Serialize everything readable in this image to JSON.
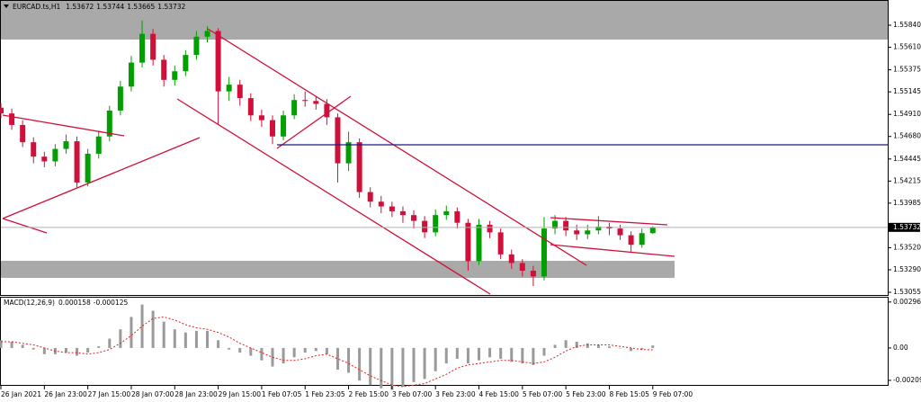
{
  "chart_data": [
    {
      "type": "candlestick",
      "symbol": "EURCAD.ts,H1",
      "x": [
        0,
        4,
        8,
        12,
        16,
        20,
        24,
        28,
        32,
        36,
        40,
        44,
        48,
        52,
        56,
        60,
        64,
        68,
        72,
        76,
        80,
        84,
        88,
        92,
        96,
        100,
        104,
        108,
        112,
        116,
        120,
        124,
        128,
        132,
        136,
        140,
        144,
        148,
        152,
        156,
        160,
        164,
        168,
        172,
        176,
        180,
        184,
        188,
        192,
        196,
        200,
        204,
        208,
        212,
        216,
        220,
        224,
        228,
        232,
        236,
        240
      ],
      "open": [
        1.5498,
        1.5492,
        1.548,
        1.5462,
        1.5447,
        1.5442,
        1.5455,
        1.5463,
        1.542,
        1.545,
        1.5468,
        1.5495,
        1.552,
        1.5545,
        1.5575,
        1.5548,
        1.5527,
        1.5536,
        1.5553,
        1.5572,
        1.5578,
        1.5515,
        1.5522,
        1.5508,
        1.549,
        1.5485,
        1.5468,
        1.549,
        1.5506,
        1.5505,
        1.5502,
        1.5488,
        1.544,
        1.5462,
        1.541,
        1.54,
        1.5395,
        1.539,
        1.5386,
        1.538,
        1.5368,
        1.5386,
        1.539,
        1.5378,
        1.5338,
        1.5376,
        1.5368,
        1.5345,
        1.5336,
        1.5328,
        1.5322,
        1.5372,
        1.538,
        1.537,
        1.5366,
        1.537,
        1.5374,
        1.5372,
        1.5365,
        1.5355,
        1.53672
      ],
      "high": [
        1.5503,
        1.5497,
        1.5485,
        1.5467,
        1.5452,
        1.546,
        1.547,
        1.5468,
        1.5455,
        1.5474,
        1.55,
        1.5526,
        1.5552,
        1.5589,
        1.558,
        1.5553,
        1.5542,
        1.5558,
        1.5578,
        1.5583,
        1.5581,
        1.553,
        1.5527,
        1.5513,
        1.5496,
        1.549,
        1.5495,
        1.5512,
        1.5515,
        1.551,
        1.5507,
        1.5492,
        1.5473,
        1.5466,
        1.5415,
        1.5406,
        1.54,
        1.5395,
        1.5391,
        1.5385,
        1.5392,
        1.5396,
        1.5394,
        1.5382,
        1.5382,
        1.538,
        1.5372,
        1.535,
        1.534,
        1.5333,
        1.5384,
        1.5386,
        1.5384,
        1.5376,
        1.5376,
        1.5385,
        1.5378,
        1.5376,
        1.5369,
        1.5372,
        1.53744
      ],
      "low": [
        1.5487,
        1.5475,
        1.5457,
        1.544,
        1.5436,
        1.5437,
        1.545,
        1.5415,
        1.5416,
        1.5445,
        1.5463,
        1.549,
        1.5515,
        1.554,
        1.5542,
        1.552,
        1.5521,
        1.5531,
        1.5548,
        1.5566,
        1.548,
        1.5505,
        1.55,
        1.5484,
        1.5478,
        1.546,
        1.5464,
        1.5486,
        1.5499,
        1.5496,
        1.548,
        1.542,
        1.5432,
        1.5404,
        1.5394,
        1.5388,
        1.5384,
        1.5378,
        1.5372,
        1.5362,
        1.5364,
        1.5381,
        1.5372,
        1.5328,
        1.5334,
        1.5362,
        1.534,
        1.533,
        1.5322,
        1.5312,
        1.5318,
        1.5366,
        1.5364,
        1.536,
        1.5361,
        1.5366,
        1.5365,
        1.536,
        1.5348,
        1.5352,
        1.53665
      ],
      "close": [
        1.5492,
        1.548,
        1.5462,
        1.5447,
        1.5442,
        1.5455,
        1.5463,
        1.542,
        1.545,
        1.5468,
        1.5495,
        1.552,
        1.5545,
        1.5575,
        1.5548,
        1.5527,
        1.5536,
        1.5553,
        1.5572,
        1.5578,
        1.5515,
        1.5522,
        1.5508,
        1.549,
        1.5485,
        1.5468,
        1.549,
        1.5506,
        1.5505,
        1.5502,
        1.5488,
        1.544,
        1.5462,
        1.541,
        1.54,
        1.5395,
        1.539,
        1.5386,
        1.538,
        1.5368,
        1.5386,
        1.539,
        1.5378,
        1.5338,
        1.5376,
        1.5368,
        1.5345,
        1.5336,
        1.5328,
        1.5322,
        1.5372,
        1.538,
        1.537,
        1.5366,
        1.537,
        1.5374,
        1.5372,
        1.5365,
        1.5355,
        1.53672,
        1.53732
      ],
      "up_color": "#00a000",
      "down_color": "#d0103a",
      "xlim": [
        0,
        326.5
      ],
      "xticks": [
        {
          "value": 0,
          "label": "26 Jan 2021"
        },
        {
          "value": 16,
          "label": "26 Jan 23:00"
        },
        {
          "value": 32,
          "label": "27 Jan 15:00"
        },
        {
          "value": 48,
          "label": "28 Jan 07:00"
        },
        {
          "value": 64,
          "label": "28 Jan 23:00"
        },
        {
          "value": 80,
          "label": "29 Jan 15:00"
        },
        {
          "value": 96,
          "label": "1 Feb 07:05"
        },
        {
          "value": 112,
          "label": "1 Feb 23:05"
        },
        {
          "value": 128,
          "label": "2 Feb 15:00"
        },
        {
          "value": 144,
          "label": "3 Feb 07:00"
        },
        {
          "value": 160,
          "label": "3 Feb 23:00"
        },
        {
          "value": 176,
          "label": "4 Feb 15:00"
        },
        {
          "value": 192,
          "label": "5 Feb 07:00"
        },
        {
          "value": 208,
          "label": "5 Feb 23:00"
        },
        {
          "value": 224,
          "label": "8 Feb 15:05"
        },
        {
          "value": 240,
          "label": "9 Feb 07:00"
        }
      ],
      "ylim": [
        1.53027,
        1.56103
      ],
      "yticks": [
        {
          "value": 1.5584,
          "label": "1.55840"
        },
        {
          "value": 1.5561,
          "label": "1.55610"
        },
        1.55375,
        1.55145,
        {
          "value": 1.5491,
          "label": "1.54910"
        },
        {
          "value": 1.5468,
          "label": "1.54680"
        },
        1.54445,
        1.54215,
        1.53985,
        {
          "value": 1.5352,
          "label": "1.53520"
        },
        {
          "value": 1.5329,
          "label": "1.53290"
        },
        1.53055
      ]
    },
    {
      "type": "macd",
      "title": "MACD(12,26,9)",
      "histogram": {
        "color": "#9a9a9a",
        "values": [
          0.0005,
          0.0004,
          0.0002,
          -0.0001,
          -0.0004,
          -0.0004,
          -0.0003,
          -0.0005,
          -0.0003,
          0.0001,
          0.0006,
          0.0012,
          0.002,
          0.0028,
          0.0024,
          0.0017,
          0.0012,
          0.001,
          0.0011,
          0.0011,
          0.0005,
          -0.0001,
          -0.0003,
          -0.0005,
          -0.0008,
          -0.0012,
          -0.001,
          -0.0006,
          -0.0003,
          -0.0002,
          -0.0004,
          -0.0014,
          -0.0016,
          -0.0021,
          -0.0024,
          -0.0026,
          -0.0027,
          -0.0025,
          -0.0022,
          -0.002,
          -0.0015,
          -0.001,
          -0.0007,
          -0.001,
          -0.0008,
          -0.0006,
          -0.0007,
          -0.0009,
          -0.001,
          -0.0011,
          -0.0005,
          0.0002,
          0.0005,
          0.0004,
          0.0003,
          0.0002,
          0.0001,
          0,
          -0.0002,
          -0.0001,
          0.000158
        ]
      },
      "signal": {
        "color": "#e02020",
        "values": [
          0.0004,
          0.0004,
          0.0003,
          0.0002,
          0,
          -0.0002,
          -0.0003,
          -0.0003,
          -0.0004,
          -0.0003,
          -0.0001,
          0.0003,
          0.0008,
          0.0014,
          0.0019,
          0.002,
          0.0018,
          0.0015,
          0.0013,
          0.0012,
          0.001,
          0.0007,
          0.0003,
          0,
          -0.0003,
          -0.0006,
          -0.0008,
          -0.0008,
          -0.0007,
          -0.0005,
          -0.0004,
          -0.0007,
          -0.001,
          -0.0014,
          -0.0018,
          -0.0021,
          -0.0024,
          -0.0025,
          -0.0024,
          -0.0023,
          -0.002,
          -0.0017,
          -0.0013,
          -0.0011,
          -0.001,
          -0.0009,
          -0.0008,
          -0.0008,
          -0.0009,
          -0.001,
          -0.0009,
          -0.0006,
          -0.0002,
          0.0001,
          0.0002,
          0.0002,
          0.0002,
          0.0001,
          0,
          -0.0001,
          -0.000125
        ]
      },
      "ylim": [
        -0.0025,
        0.0033
      ],
      "yticks": [
        0.002961,
        {
          "value": 0,
          "label": "0.00"
        },
        {
          "value": -0.00209,
          "label": "-0.002090"
        }
      ]
    }
  ]
}
